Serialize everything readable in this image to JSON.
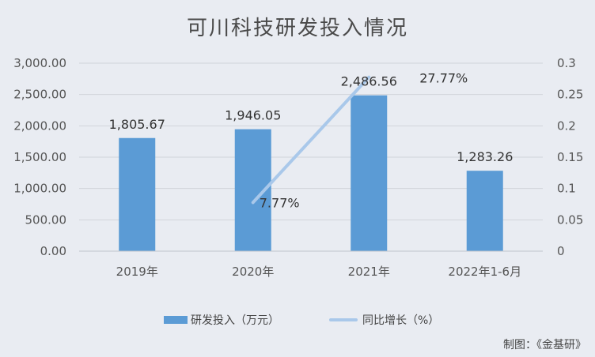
{
  "chart_data": {
    "title": "可川科技研发投入情况",
    "categories": [
      "2019年",
      "2020年",
      "2021年",
      "2022年1-6月"
    ],
    "y_left": {
      "range": [
        0,
        3000
      ],
      "ticks": [
        0,
        500,
        1000,
        1500,
        2000,
        2500,
        3000
      ],
      "tick_labels": [
        "0.00",
        "500.00",
        "1,000.00",
        "1,500.00",
        "2,000.00",
        "2,500.00",
        "3,000.00"
      ]
    },
    "y_right": {
      "range": [
        0,
        0.3
      ],
      "ticks": [
        0,
        0.05,
        0.1,
        0.15,
        0.2,
        0.25,
        0.3
      ],
      "tick_labels": [
        "0",
        "0.05",
        "0.1",
        "0.15",
        "0.2",
        "0.25",
        "0.3"
      ]
    },
    "series": [
      {
        "name": "研发投入（万元）",
        "type": "bar",
        "axis": "left",
        "color": "#5b9bd5",
        "values": [
          1805.67,
          1946.05,
          2486.56,
          1283.26
        ],
        "labels": [
          "1,805.67",
          "1,946.05",
          "2,486.56",
          "1,283.26"
        ]
      },
      {
        "name": "同比增长（%）",
        "type": "line",
        "axis": "right",
        "color": "#a9c8ea",
        "values": [
          null,
          0.0777,
          0.2777,
          null
        ],
        "labels": [
          "",
          "7.77%",
          "27.77%",
          ""
        ]
      }
    ],
    "grid": "horizontal",
    "legend": "bottom-center"
  },
  "credit": "制图：《金基研》"
}
